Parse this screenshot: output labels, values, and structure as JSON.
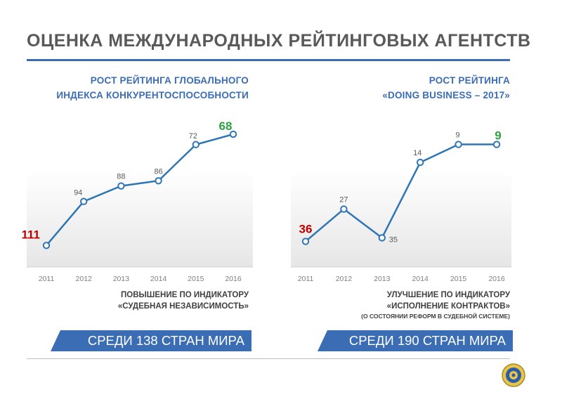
{
  "page": {
    "title": "ОЦЕНКА МЕЖДУНАРОДНЫХ РЕЙТИНГОВЫХ АГЕНТСТВ"
  },
  "colors": {
    "accent": "#3b6db5",
    "line": "#2e75b6",
    "start_highlight": "#c00000",
    "end_highlight": "#2ea043",
    "text": "#595959"
  },
  "left": {
    "heading_lines": [
      "РОСТ РЕЙТИНГА ГЛОБАЛЬНОГО",
      "ИНДЕКСА КОНКУРЕНТОСПОСОБНОСТИ"
    ],
    "note_lines": [
      "ПОВЫШЕНИЕ ПО ИНДИКАТОРУ",
      "«СУДЕБНАЯ НЕЗАВИСИМОСТЬ»"
    ],
    "banner": "СРЕДИ 138 СТРАН МИРА"
  },
  "right": {
    "heading_lines": [
      "РОСТ РЕЙТИНГА",
      "«DOING BUSINESS – 2017»"
    ],
    "note_lines": [
      "УЛУЧШЕНИЕ ПО ИНДИКАТОРУ",
      "«ИСПОЛНЕНИЕ КОНТРАКТОВ»"
    ],
    "note_small": "(О СОСТОЯНИИ РЕФОРМ В СУДЕБНОЙ СИСТЕМЕ)",
    "banner": "СРЕДИ 190 СТРАН МИРА"
  },
  "chart_data": [
    {
      "type": "line",
      "categories": [
        "2011",
        "2012",
        "2013",
        "2014",
        "2015",
        "2016"
      ],
      "values": [
        111,
        94,
        88,
        86,
        72,
        68
      ],
      "labels": [
        "111",
        "94",
        "88",
        "86",
        "72",
        "68"
      ],
      "ylim": [
        115,
        65
      ],
      "y_inverted": true,
      "grid": false
    },
    {
      "type": "line",
      "categories": [
        "2011",
        "2012",
        "2013",
        "2014",
        "2015",
        "2016"
      ],
      "values": [
        36,
        27,
        35,
        14,
        9,
        9
      ],
      "labels": [
        "36",
        "27",
        "35",
        "14",
        "9",
        "9"
      ],
      "ylim": [
        40,
        4
      ],
      "y_inverted": true,
      "grid": false
    }
  ]
}
